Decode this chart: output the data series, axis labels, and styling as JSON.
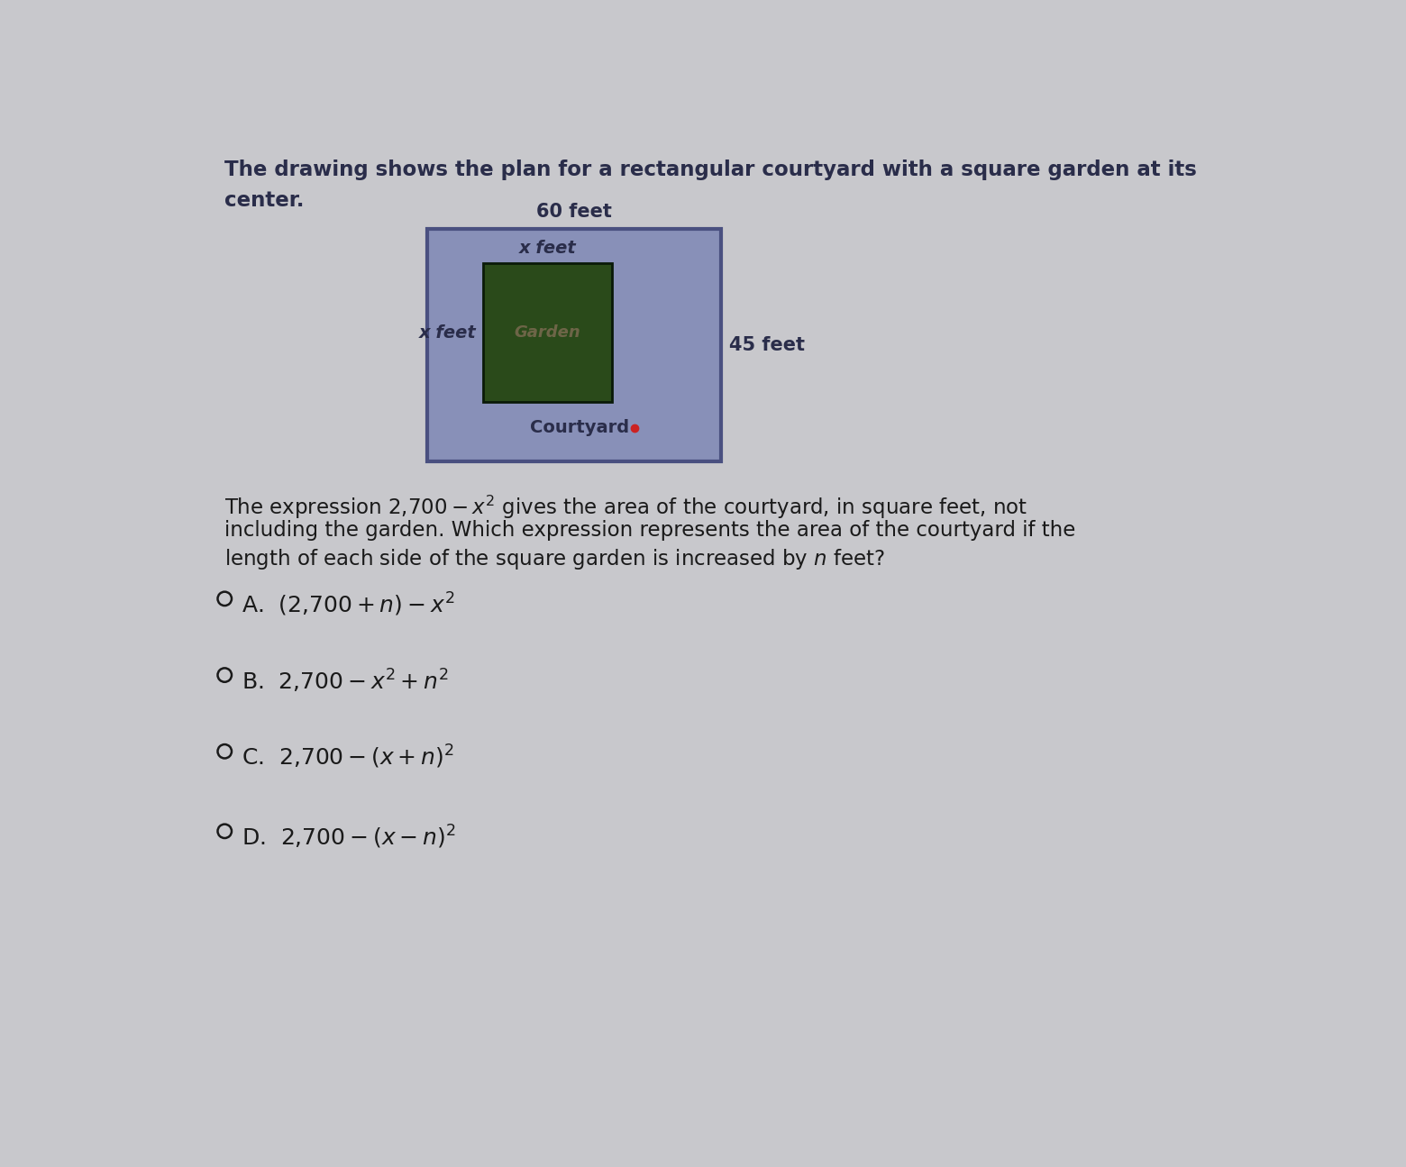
{
  "bg_color": "#c8c8cc",
  "title_line1": "The drawing shows the plan for a rectangular courtyard with a square garden at its",
  "title_line2": "center.",
  "title_fontsize": 16.5,
  "courtyard_color": "#8890b8",
  "garden_color": "#2a4a1a",
  "courtyard_border_color": "#4a5080",
  "label_60_feet": "60 feet",
  "label_45_feet": "45 feet",
  "label_x_feet_top": "x feet",
  "label_x_feet_left": "x feet",
  "label_garden": "Garden",
  "label_courtyard": "Courtyard",
  "text_color": "#2a2d4a",
  "body_text_color": "#1a1a1a",
  "option_fontsize": 18,
  "expression_fontsize": 16.5,
  "title_text_color": "#2a2d4a"
}
